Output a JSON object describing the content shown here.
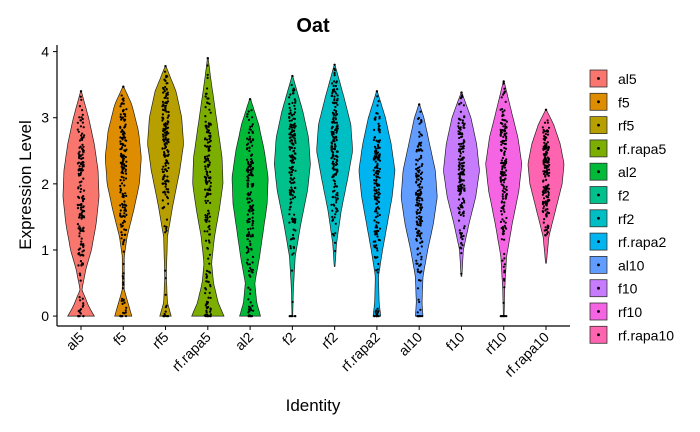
{
  "chart_data": {
    "type": "violin",
    "title": "Oat",
    "xlabel": "Identity",
    "ylabel": "Expression Level",
    "ylim": [
      -0.15,
      4.1
    ],
    "yticks": [
      0,
      1,
      2,
      3,
      4
    ],
    "grid": false,
    "legend_position": "right",
    "categories": [
      "al5",
      "f5",
      "rf5",
      "rf.rapa5",
      "al2",
      "f2",
      "rf2",
      "rf.rapa2",
      "al10",
      "f10",
      "rf10",
      "rf.rapa10"
    ],
    "groups": [
      {
        "name": "al5",
        "color": "#F8766D",
        "max": 3.4,
        "profile": [
          [
            0,
            0.7
          ],
          [
            0.15,
            0.4
          ],
          [
            0.4,
            0.05
          ],
          [
            0.7,
            0.25
          ],
          [
            1.0,
            0.55
          ],
          [
            1.4,
            0.8
          ],
          [
            1.8,
            0.95
          ],
          [
            2.2,
            0.9
          ],
          [
            2.6,
            0.7
          ],
          [
            3.0,
            0.4
          ],
          [
            3.4,
            0.02
          ]
        ]
      },
      {
        "name": "f5",
        "color": "#DE8C00",
        "max": 3.47,
        "profile": [
          [
            0,
            0.45
          ],
          [
            0.15,
            0.3
          ],
          [
            0.4,
            0.05
          ],
          [
            0.9,
            0.05
          ],
          [
            1.2,
            0.2
          ],
          [
            1.6,
            0.55
          ],
          [
            2.0,
            0.85
          ],
          [
            2.4,
            0.95
          ],
          [
            2.8,
            0.8
          ],
          [
            3.2,
            0.45
          ],
          [
            3.47,
            0.02
          ]
        ]
      },
      {
        "name": "rf5",
        "color": "#B79F00",
        "max": 3.78,
        "profile": [
          [
            0,
            0.3
          ],
          [
            0.2,
            0.1
          ],
          [
            0.6,
            0.04
          ],
          [
            1.2,
            0.1
          ],
          [
            1.7,
            0.4
          ],
          [
            2.2,
            0.75
          ],
          [
            2.6,
            0.95
          ],
          [
            3.0,
            0.85
          ],
          [
            3.4,
            0.55
          ],
          [
            3.78,
            0.02
          ]
        ]
      },
      {
        "name": "rf.rapa5",
        "color": "#7CAE00",
        "max": 3.9,
        "profile": [
          [
            0,
            0.85
          ],
          [
            0.2,
            0.55
          ],
          [
            0.5,
            0.3
          ],
          [
            0.8,
            0.2
          ],
          [
            1.2,
            0.35
          ],
          [
            1.6,
            0.6
          ],
          [
            2.0,
            0.8
          ],
          [
            2.4,
            0.75
          ],
          [
            2.8,
            0.55
          ],
          [
            3.2,
            0.35
          ],
          [
            3.6,
            0.15
          ],
          [
            3.9,
            0.02
          ]
        ]
      },
      {
        "name": "al2",
        "color": "#00BA38",
        "max": 3.28,
        "profile": [
          [
            0,
            0.55
          ],
          [
            0.2,
            0.35
          ],
          [
            0.5,
            0.25
          ],
          [
            0.9,
            0.5
          ],
          [
            1.3,
            0.7
          ],
          [
            1.7,
            0.9
          ],
          [
            2.1,
            0.95
          ],
          [
            2.5,
            0.75
          ],
          [
            2.9,
            0.45
          ],
          [
            3.28,
            0.03
          ]
        ]
      },
      {
        "name": "f2",
        "color": "#00C08B",
        "max": 3.63,
        "profile": [
          [
            0,
            0.02
          ],
          [
            0.4,
            0.05
          ],
          [
            0.9,
            0.15
          ],
          [
            1.4,
            0.45
          ],
          [
            1.9,
            0.8
          ],
          [
            2.3,
            0.95
          ],
          [
            2.7,
            0.85
          ],
          [
            3.1,
            0.55
          ],
          [
            3.63,
            0.02
          ]
        ]
      },
      {
        "name": "rf2",
        "color": "#00BFC4",
        "max": 3.8,
        "profile": [
          [
            0.75,
            0.02
          ],
          [
            1.1,
            0.1
          ],
          [
            1.6,
            0.35
          ],
          [
            2.1,
            0.7
          ],
          [
            2.5,
            0.95
          ],
          [
            2.9,
            0.85
          ],
          [
            3.3,
            0.5
          ],
          [
            3.8,
            0.02
          ]
        ]
      },
      {
        "name": "rf.rapa2",
        "color": "#00B4F0",
        "max": 3.4,
        "profile": [
          [
            0,
            0.2
          ],
          [
            0.2,
            0.12
          ],
          [
            0.6,
            0.08
          ],
          [
            1.0,
            0.3
          ],
          [
            1.4,
            0.55
          ],
          [
            1.8,
            0.8
          ],
          [
            2.2,
            0.95
          ],
          [
            2.6,
            0.75
          ],
          [
            3.0,
            0.45
          ],
          [
            3.4,
            0.02
          ]
        ]
      },
      {
        "name": "al10",
        "color": "#619CFF",
        "max": 3.2,
        "profile": [
          [
            0,
            0.2
          ],
          [
            0.2,
            0.15
          ],
          [
            0.6,
            0.2
          ],
          [
            1.0,
            0.45
          ],
          [
            1.4,
            0.75
          ],
          [
            1.8,
            0.95
          ],
          [
            2.2,
            0.85
          ],
          [
            2.6,
            0.55
          ],
          [
            3.0,
            0.25
          ],
          [
            3.2,
            0.02
          ]
        ]
      },
      {
        "name": "f10",
        "color": "#C77CFF",
        "max": 3.38,
        "profile": [
          [
            0.6,
            0.02
          ],
          [
            1.0,
            0.1
          ],
          [
            1.4,
            0.4
          ],
          [
            1.8,
            0.75
          ],
          [
            2.2,
            0.95
          ],
          [
            2.6,
            0.8
          ],
          [
            3.0,
            0.5
          ],
          [
            3.38,
            0.02
          ]
        ]
      },
      {
        "name": "rf10",
        "color": "#F564E3",
        "max": 3.55,
        "profile": [
          [
            0,
            0.02
          ],
          [
            0.4,
            0.05
          ],
          [
            0.9,
            0.15
          ],
          [
            1.4,
            0.45
          ],
          [
            1.9,
            0.8
          ],
          [
            2.3,
            0.95
          ],
          [
            2.7,
            0.75
          ],
          [
            3.1,
            0.4
          ],
          [
            3.55,
            0.02
          ]
        ]
      },
      {
        "name": "rf.rapa10",
        "color": "#FF64B0",
        "max": 3.12,
        "profile": [
          [
            0.8,
            0.02
          ],
          [
            1.2,
            0.15
          ],
          [
            1.6,
            0.5
          ],
          [
            2.0,
            0.85
          ],
          [
            2.3,
            0.95
          ],
          [
            2.6,
            0.75
          ],
          [
            2.9,
            0.4
          ],
          [
            3.12,
            0.02
          ]
        ]
      }
    ]
  }
}
